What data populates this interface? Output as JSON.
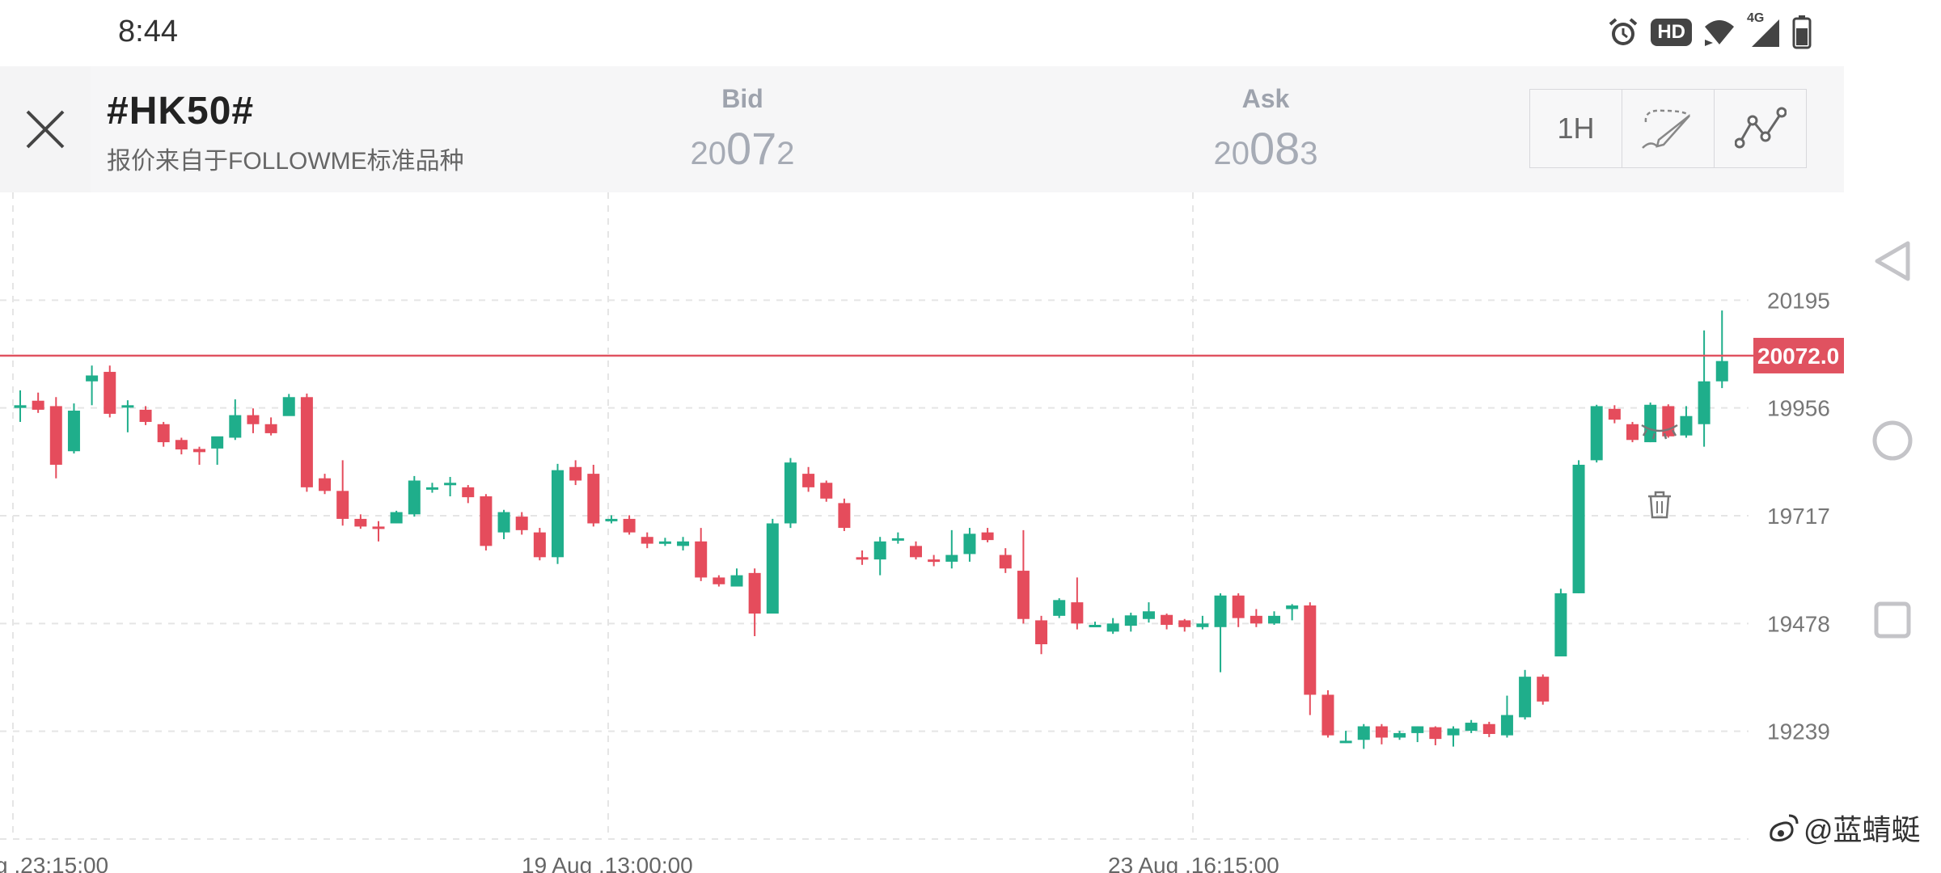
{
  "status_bar": {
    "time": "8:44",
    "hd_badge": "HD",
    "network_label": "4G",
    "icons": [
      "alarm-icon",
      "wifi-icon",
      "signal-icon",
      "battery-icon"
    ]
  },
  "header": {
    "symbol": "#HK50#",
    "subtitle": "报价来自于FOLLOWME标准品种",
    "bid": {
      "label": "Bid",
      "lead": "20",
      "big": "07",
      "tail": "2"
    },
    "ask": {
      "label": "Ask",
      "lead": "20",
      "big": "08",
      "tail": "3"
    },
    "toolbar": {
      "timeframe": "1H",
      "draw_icon": "brush-icon",
      "indicator_icon": "line-chart-icon"
    }
  },
  "chart_data": {
    "type": "candlestick",
    "y_ticks": [
      "20195",
      "19956",
      "19717",
      "19478",
      "19239"
    ],
    "x_ticks": [
      "g ,23:15:00",
      "19 Aug ,13:00:00",
      "23 Aug ,16:15:00"
    ],
    "ylim": [
      19000,
      20434
    ],
    "current_price": 20072.0,
    "current_price_label": "20072.0",
    "colors": {
      "up": "#1fae8b",
      "down": "#e54c5c",
      "price_line": "#e05260",
      "grid": "#e5e5e5"
    },
    "overlay_icons": [
      "eye-closed-icon",
      "trash-icon"
    ],
    "candles": [
      [
        19956,
        19962,
        19925,
        19995
      ],
      [
        19972,
        19952,
        19945,
        19990
      ],
      [
        19960,
        19830,
        19800,
        19980
      ],
      [
        19860,
        19950,
        19855,
        19966
      ],
      [
        20015,
        20028,
        19962,
        20050
      ],
      [
        20036,
        19943,
        19935,
        20050
      ],
      [
        19958,
        19962,
        19902,
        19973
      ],
      [
        19952,
        19925,
        19918,
        19960
      ],
      [
        19920,
        19880,
        19870,
        19925
      ],
      [
        19885,
        19864,
        19853,
        19890
      ],
      [
        19865,
        19858,
        19830,
        19870
      ],
      [
        19866,
        19893,
        19830,
        19880
      ],
      [
        19890,
        19940,
        19885,
        19975
      ],
      [
        19940,
        19920,
        19900,
        19955
      ],
      [
        19920,
        19900,
        19895,
        19935
      ],
      [
        19938,
        19980,
        19940,
        19987
      ],
      [
        19980,
        19780,
        19770,
        19988
      ],
      [
        19800,
        19772,
        19765,
        19810
      ],
      [
        19772,
        19710,
        19695,
        19840
      ],
      [
        19710,
        19693,
        19688,
        19720
      ],
      [
        19693,
        19690,
        19660,
        19705
      ],
      [
        19700,
        19725,
        19700,
        19728
      ],
      [
        19720,
        19795,
        19715,
        19805
      ],
      [
        19780,
        19780,
        19768,
        19790
      ],
      [
        19785,
        19790,
        19760,
        19803
      ],
      [
        19780,
        19758,
        19745,
        19785
      ],
      [
        19760,
        19650,
        19640,
        19765
      ],
      [
        19680,
        19725,
        19665,
        19730
      ],
      [
        19715,
        19685,
        19675,
        19725
      ],
      [
        19680,
        19625,
        19618,
        19690
      ],
      [
        19625,
        19818,
        19610,
        19832
      ],
      [
        19825,
        19795,
        19785,
        19840
      ],
      [
        19810,
        19700,
        19693,
        19830
      ],
      [
        19710,
        19710,
        19700,
        19718
      ],
      [
        19710,
        19680,
        19675,
        19718
      ],
      [
        19670,
        19655,
        19645,
        19680
      ],
      [
        19655,
        19660,
        19650,
        19668
      ],
      [
        19650,
        19660,
        19640,
        19670
      ],
      [
        19660,
        19580,
        19572,
        19690
      ],
      [
        19580,
        19565,
        19560,
        19585
      ],
      [
        19560,
        19585,
        19565,
        19600
      ],
      [
        19590,
        19500,
        19450,
        19600
      ],
      [
        19500,
        19700,
        19505,
        19710
      ],
      [
        19700,
        19835,
        19690,
        19845
      ],
      [
        19810,
        19780,
        19770,
        19825
      ],
      [
        19790,
        19755,
        19748,
        19795
      ],
      [
        19745,
        19690,
        19683,
        19755
      ],
      [
        19625,
        19620,
        19608,
        19640
      ],
      [
        19620,
        19660,
        19585,
        19670
      ],
      [
        19662,
        19667,
        19655,
        19680
      ],
      [
        19650,
        19625,
        19620,
        19660
      ],
      [
        19620,
        19615,
        19605,
        19630
      ],
      [
        19615,
        19630,
        19600,
        19685
      ],
      [
        19632,
        19677,
        19615,
        19690
      ],
      [
        19680,
        19663,
        19658,
        19690
      ],
      [
        19630,
        19600,
        19590,
        19645
      ],
      [
        19595,
        19488,
        19478,
        19685
      ],
      [
        19485,
        19432,
        19410,
        19495
      ],
      [
        19495,
        19530,
        19490,
        19534
      ],
      [
        19525,
        19478,
        19465,
        19580
      ],
      [
        19475,
        19475,
        19470,
        19482
      ],
      [
        19460,
        19478,
        19455,
        19490
      ],
      [
        19473,
        19496,
        19460,
        19502
      ],
      [
        19488,
        19505,
        19480,
        19525
      ],
      [
        19497,
        19475,
        19465,
        19500
      ],
      [
        19485,
        19470,
        19460,
        19488
      ],
      [
        19470,
        19478,
        19465,
        19495
      ],
      [
        19470,
        19540,
        19370,
        19545
      ],
      [
        19540,
        19490,
        19470,
        19545
      ],
      [
        19495,
        19478,
        19470,
        19510
      ],
      [
        19478,
        19495,
        19475,
        19505
      ],
      [
        19510,
        19518,
        19485,
        19521
      ],
      [
        19518,
        19320,
        19275,
        19525
      ],
      [
        19320,
        19230,
        19225,
        19330
      ],
      [
        19218,
        19218,
        19213,
        19240
      ],
      [
        19220,
        19250,
        19200,
        19255
      ],
      [
        19250,
        19225,
        19210,
        19255
      ],
      [
        19225,
        19235,
        19220,
        19240
      ],
      [
        19235,
        19250,
        19215,
        19250
      ],
      [
        19248,
        19222,
        19208,
        19250
      ],
      [
        19230,
        19245,
        19205,
        19250
      ],
      [
        19240,
        19258,
        19235,
        19264
      ],
      [
        19255,
        19233,
        19226,
        19260
      ],
      [
        19230,
        19275,
        19225,
        19318
      ],
      [
        19270,
        19360,
        19265,
        19375
      ],
      [
        19360,
        19305,
        19298,
        19365
      ],
      [
        19405,
        19545,
        19405,
        19555
      ],
      [
        19545,
        19830,
        19545,
        19840
      ],
      [
        19840,
        19960,
        19835,
        19963
      ],
      [
        19954,
        19930,
        19922,
        19962
      ],
      [
        19920,
        19885,
        19880,
        19925
      ],
      [
        19880,
        19963,
        19880,
        19968
      ],
      [
        19960,
        19893,
        19890,
        19964
      ],
      [
        19895,
        19938,
        19890,
        19960
      ],
      [
        19920,
        20015,
        19870,
        20128
      ],
      [
        20015,
        20060,
        20000,
        20172
      ]
    ]
  },
  "watermark": {
    "text": "@蓝蜻蜓"
  }
}
